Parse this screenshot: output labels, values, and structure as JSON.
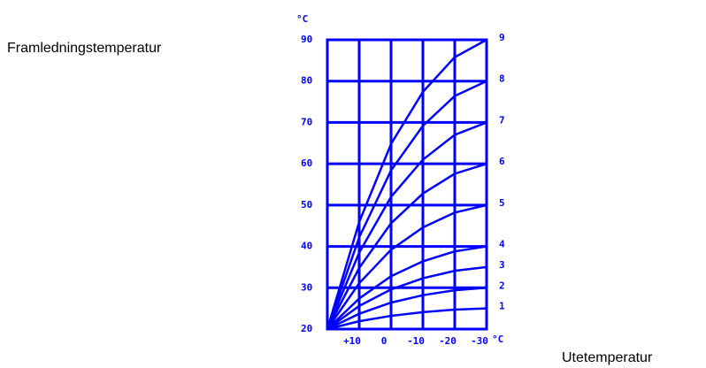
{
  "chart_data": {
    "type": "line",
    "ylabel": "Framledningstemperatur",
    "xlabel": "Utetemperatur",
    "y_unit": "°C",
    "x_unit": "°C",
    "x": [
      20,
      10,
      0,
      -10,
      -20,
      -30
    ],
    "xlim": [
      20,
      -30
    ],
    "xticks": [
      {
        "value": 10,
        "label": "+10"
      },
      0,
      -10,
      -20,
      -30
    ],
    "ylim": [
      20,
      90
    ],
    "yticks": [
      20,
      30,
      40,
      50,
      60,
      70,
      80,
      90
    ],
    "grid": true,
    "color": "#0000ff",
    "series": [
      {
        "name": "1",
        "values": [
          20,
          21.9,
          23.2,
          24.1,
          24.7,
          25
        ]
      },
      {
        "name": "2",
        "values": [
          20,
          23.7,
          26.4,
          28.2,
          29.4,
          30
        ]
      },
      {
        "name": "3",
        "values": [
          20,
          25.6,
          29.6,
          32.3,
          34.1,
          35
        ]
      },
      {
        "name": "4",
        "values": [
          20,
          27.4,
          32.8,
          36.4,
          38.8,
          40
        ]
      },
      {
        "name": "5",
        "values": [
          20,
          31.1,
          39.2,
          44.6,
          48.2,
          50
        ]
      },
      {
        "name": "6",
        "values": [
          20,
          34.8,
          45.6,
          52.8,
          57.6,
          60
        ]
      },
      {
        "name": "7",
        "values": [
          20,
          38.5,
          52,
          61,
          67,
          70
        ]
      },
      {
        "name": "8",
        "values": [
          20,
          42.2,
          58.4,
          69.2,
          76.4,
          80
        ]
      },
      {
        "name": "9",
        "values": [
          20,
          45.9,
          64.8,
          77.4,
          85.8,
          90
        ]
      }
    ]
  }
}
